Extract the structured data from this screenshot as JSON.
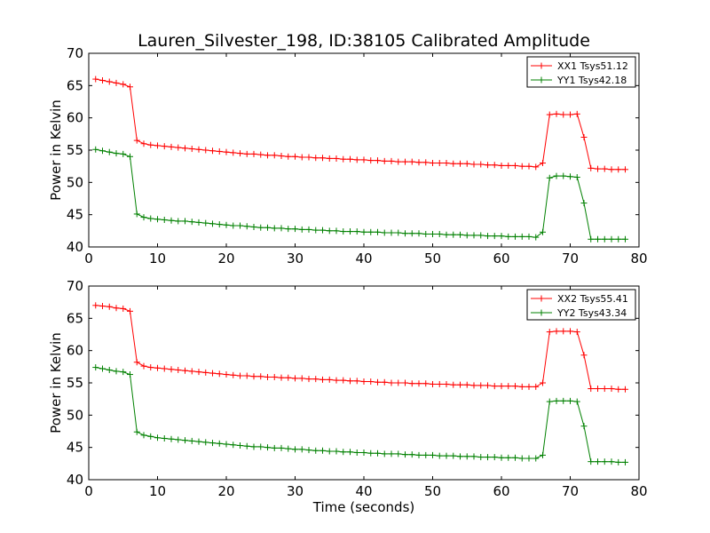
{
  "chart_data": {
    "type": "line",
    "title": "Lauren_Silvester_198, ID:38105 Calibrated Amplitude",
    "xlabel": "Time (seconds)",
    "ylabel": "Power in Kelvin",
    "xlim": [
      0,
      80
    ],
    "xticks": [
      0,
      10,
      20,
      30,
      40,
      50,
      60,
      70,
      80
    ],
    "x": [
      1,
      2,
      3,
      4,
      5,
      6,
      7,
      8,
      9,
      10,
      11,
      12,
      13,
      14,
      15,
      16,
      17,
      18,
      19,
      20,
      21,
      22,
      23,
      24,
      25,
      26,
      27,
      28,
      29,
      30,
      31,
      32,
      33,
      34,
      35,
      36,
      37,
      38,
      39,
      40,
      41,
      42,
      43,
      44,
      45,
      46,
      47,
      48,
      49,
      50,
      51,
      52,
      53,
      54,
      55,
      56,
      57,
      58,
      59,
      60,
      61,
      62,
      63,
      64,
      65,
      66,
      67,
      68,
      69,
      70,
      71,
      72,
      73,
      74,
      75,
      76,
      77,
      78
    ],
    "panels": [
      {
        "ylim": [
          40,
          70
        ],
        "yticks": [
          40,
          45,
          50,
          55,
          60,
          65,
          70
        ],
        "legend_position": "top-right",
        "series": [
          {
            "name": "XX1 Tsys51.12",
            "color": "#ff0000",
            "values": [
              66.0,
              65.8,
              65.6,
              65.4,
              65.2,
              64.8,
              56.5,
              56.0,
              55.8,
              55.7,
              55.6,
              55.5,
              55.4,
              55.3,
              55.2,
              55.1,
              55.0,
              54.9,
              54.8,
              54.7,
              54.6,
              54.5,
              54.4,
              54.4,
              54.3,
              54.2,
              54.2,
              54.1,
              54.0,
              54.0,
              53.9,
              53.9,
              53.8,
              53.8,
              53.7,
              53.7,
              53.6,
              53.6,
              53.5,
              53.5,
              53.4,
              53.4,
              53.3,
              53.3,
              53.2,
              53.2,
              53.2,
              53.1,
              53.1,
              53.0,
              53.0,
              53.0,
              52.9,
              52.9,
              52.9,
              52.8,
              52.8,
              52.7,
              52.7,
              52.6,
              52.6,
              52.6,
              52.5,
              52.5,
              52.4,
              53.0,
              60.5,
              60.6,
              60.5,
              60.5,
              60.6,
              57.0,
              52.2,
              52.1,
              52.1,
              52.0,
              52.0,
              52.0
            ]
          },
          {
            "name": "YY1 Tsys42.18",
            "color": "#008000",
            "values": [
              55.1,
              54.9,
              54.7,
              54.5,
              54.4,
              54.0,
              45.1,
              44.6,
              44.4,
              44.3,
              44.2,
              44.1,
              44.0,
              44.0,
              43.9,
              43.8,
              43.7,
              43.6,
              43.5,
              43.4,
              43.3,
              43.3,
              43.2,
              43.1,
              43.0,
              43.0,
              42.9,
              42.9,
              42.8,
              42.8,
              42.7,
              42.7,
              42.6,
              42.6,
              42.5,
              42.5,
              42.4,
              42.4,
              42.4,
              42.3,
              42.3,
              42.3,
              42.2,
              42.2,
              42.2,
              42.1,
              42.1,
              42.1,
              42.0,
              42.0,
              42.0,
              41.9,
              41.9,
              41.9,
              41.8,
              41.8,
              41.8,
              41.7,
              41.7,
              41.7,
              41.6,
              41.6,
              41.6,
              41.6,
              41.5,
              42.3,
              50.7,
              51.0,
              51.0,
              50.9,
              50.8,
              46.8,
              41.2,
              41.2,
              41.2,
              41.2,
              41.2,
              41.2
            ]
          }
        ]
      },
      {
        "ylim": [
          40,
          70
        ],
        "yticks": [
          40,
          45,
          50,
          55,
          60,
          65,
          70
        ],
        "legend_position": "top-right",
        "series": [
          {
            "name": "XX2 Tsys55.41",
            "color": "#ff0000",
            "values": [
              67.0,
              66.9,
              66.8,
              66.6,
              66.5,
              66.1,
              58.2,
              57.6,
              57.4,
              57.3,
              57.2,
              57.1,
              57.0,
              56.9,
              56.8,
              56.7,
              56.6,
              56.5,
              56.4,
              56.3,
              56.2,
              56.1,
              56.1,
              56.0,
              56.0,
              55.9,
              55.9,
              55.8,
              55.8,
              55.7,
              55.7,
              55.6,
              55.6,
              55.5,
              55.5,
              55.4,
              55.4,
              55.3,
              55.3,
              55.2,
              55.2,
              55.1,
              55.1,
              55.0,
              55.0,
              55.0,
              54.9,
              54.9,
              54.9,
              54.8,
              54.8,
              54.8,
              54.7,
              54.7,
              54.7,
              54.6,
              54.6,
              54.6,
              54.5,
              54.5,
              54.5,
              54.5,
              54.4,
              54.4,
              54.4,
              55.0,
              62.9,
              63.0,
              63.0,
              63.0,
              62.9,
              59.3,
              54.1,
              54.1,
              54.1,
              54.1,
              54.0,
              54.0
            ]
          },
          {
            "name": "YY2 Tsys43.34",
            "color": "#008000",
            "values": [
              57.4,
              57.2,
              57.0,
              56.8,
              56.7,
              56.3,
              47.4,
              46.9,
              46.7,
              46.5,
              46.4,
              46.3,
              46.2,
              46.1,
              46.0,
              45.9,
              45.8,
              45.7,
              45.6,
              45.5,
              45.4,
              45.3,
              45.2,
              45.1,
              45.1,
              45.0,
              44.9,
              44.9,
              44.8,
              44.7,
              44.7,
              44.6,
              44.5,
              44.5,
              44.4,
              44.4,
              44.3,
              44.3,
              44.2,
              44.2,
              44.1,
              44.1,
              44.0,
              44.0,
              44.0,
              43.9,
              43.9,
              43.8,
              43.8,
              43.8,
              43.7,
              43.7,
              43.7,
              43.6,
              43.6,
              43.6,
              43.5,
              43.5,
              43.5,
              43.4,
              43.4,
              43.4,
              43.3,
              43.3,
              43.3,
              43.8,
              52.1,
              52.2,
              52.2,
              52.2,
              52.1,
              48.3,
              42.8,
              42.8,
              42.8,
              42.8,
              42.7,
              42.7
            ]
          }
        ]
      }
    ]
  }
}
